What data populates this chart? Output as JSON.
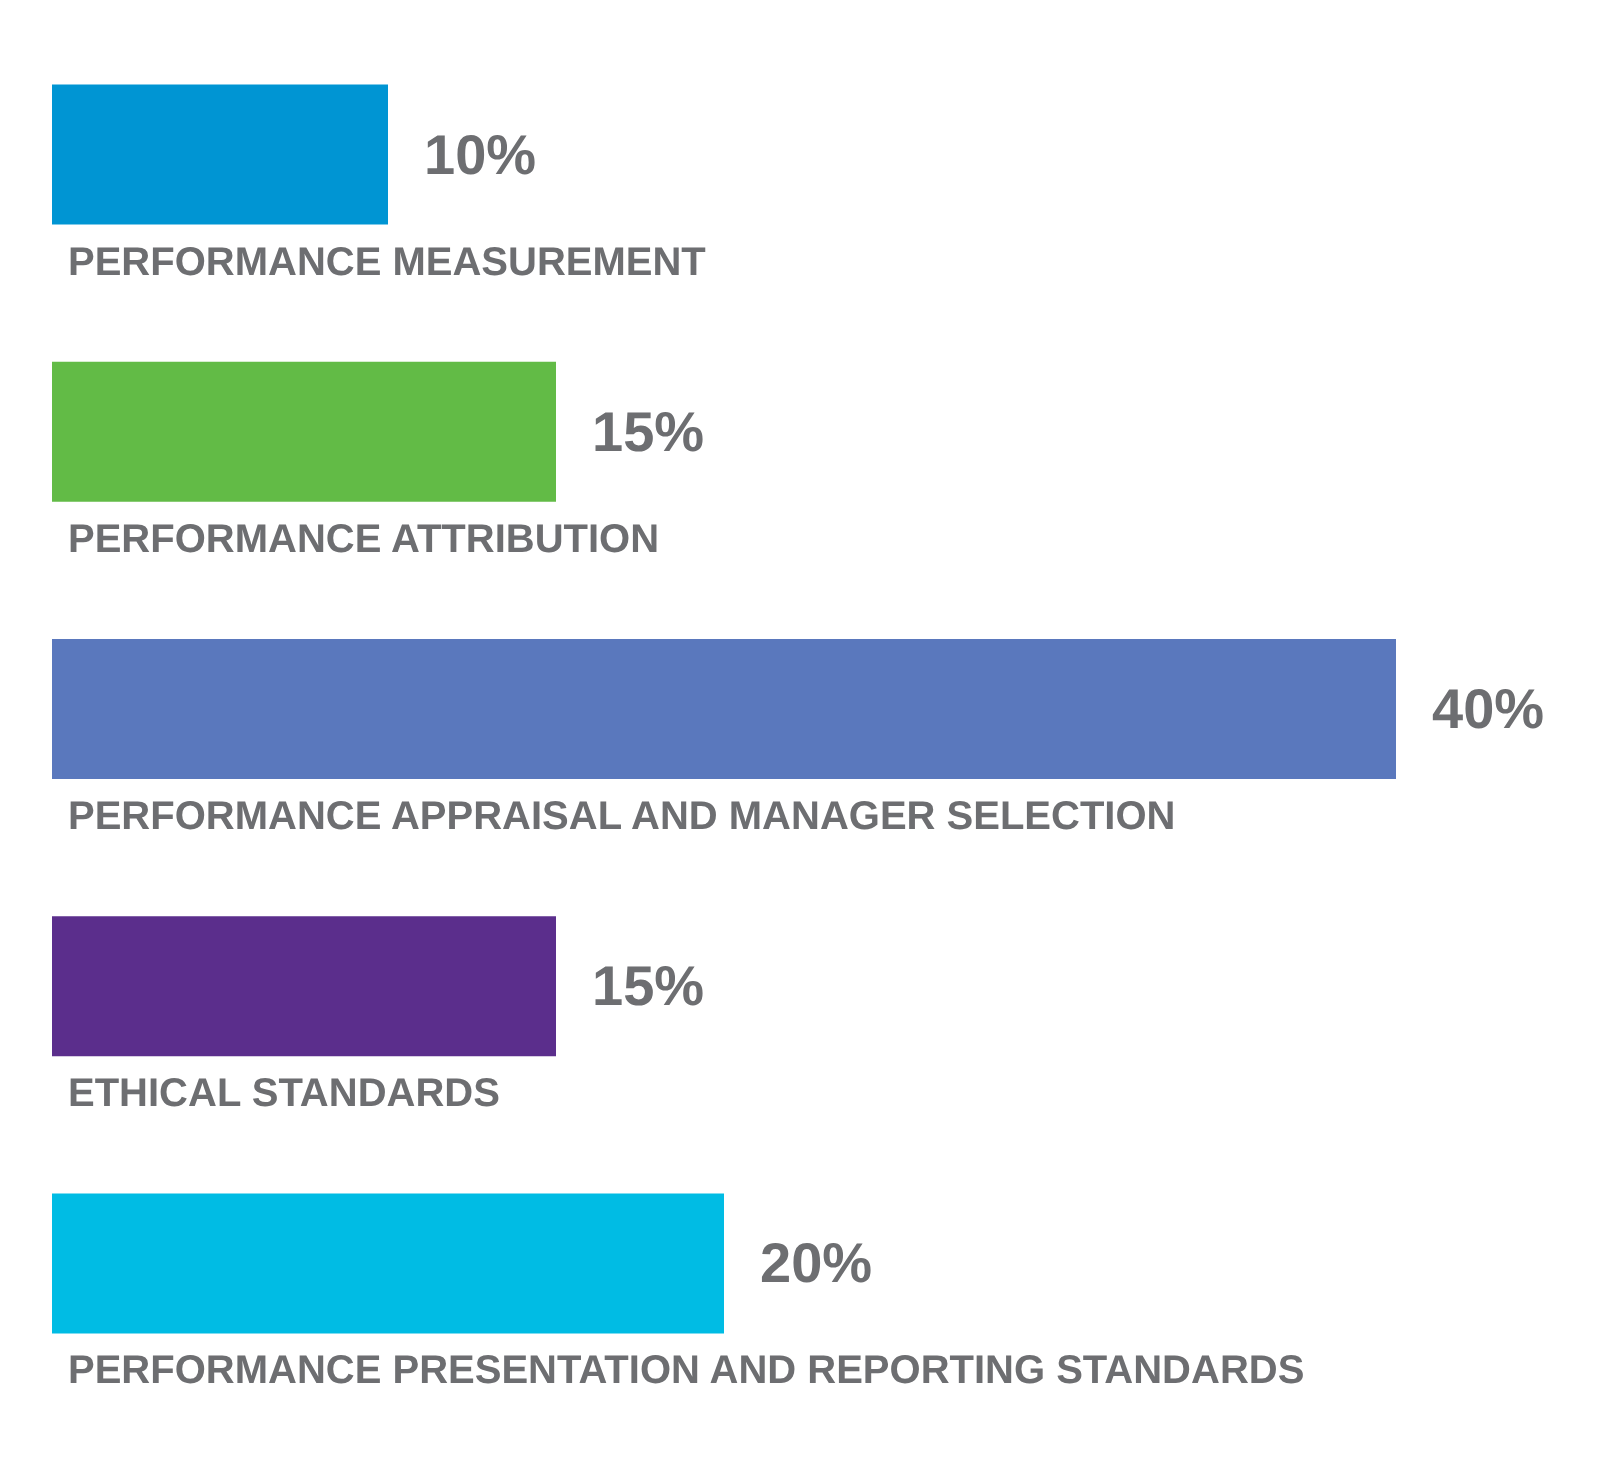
{
  "chart_data": {
    "type": "bar",
    "orientation": "horizontal",
    "categories": [
      "PERFORMANCE MEASUREMENT",
      "PERFORMANCE ATTRIBUTION",
      "PERFORMANCE APPRAISAL AND MANAGER SELECTION",
      "ETHICAL STANDARDS",
      "PERFORMANCE PRESENTATION AND REPORTING STANDARDS"
    ],
    "values": [
      10,
      15,
      40,
      15,
      20
    ],
    "value_labels": [
      "10%",
      "15%",
      "40%",
      "15%",
      "20%"
    ],
    "colors": [
      "#0095d3",
      "#62bb46",
      "#5a78bd",
      "#5b2e8c",
      "#00bce4"
    ]
  }
}
